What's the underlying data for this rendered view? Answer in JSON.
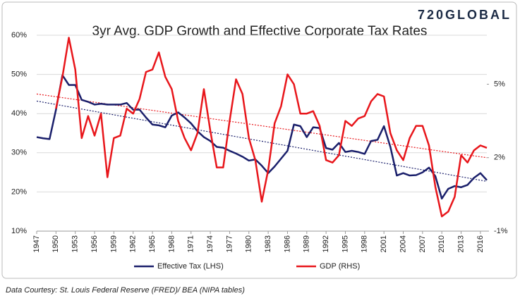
{
  "brand": "720GLOBAL",
  "source": "Data Courtesy: St. Louis Federal Reserve (FRED)/ BEA (NIPA tables)",
  "chart_data": {
    "type": "line",
    "title": "3yr Avg. GDP Growth and Effective Corporate Tax Rates",
    "x": [
      1947,
      1948,
      1949,
      1950,
      1951,
      1952,
      1953,
      1954,
      1955,
      1956,
      1957,
      1958,
      1959,
      1960,
      1961,
      1962,
      1963,
      1964,
      1965,
      1966,
      1967,
      1968,
      1969,
      1970,
      1971,
      1972,
      1973,
      1974,
      1975,
      1976,
      1977,
      1978,
      1979,
      1980,
      1981,
      1982,
      1983,
      1984,
      1985,
      1986,
      1987,
      1988,
      1989,
      1990,
      1991,
      1992,
      1993,
      1994,
      1995,
      1996,
      1997,
      1998,
      1999,
      2000,
      2001,
      2002,
      2003,
      2004,
      2005,
      2006,
      2007,
      2008,
      2009,
      2010,
      2011,
      2012,
      2013,
      2014,
      2015,
      2016,
      2017
    ],
    "xlim": [
      1947,
      2017
    ],
    "xticks": [
      1947,
      1950,
      1953,
      1956,
      1959,
      1962,
      1965,
      1968,
      1971,
      1974,
      1977,
      1980,
      1983,
      1986,
      1989,
      1992,
      1995,
      1998,
      2001,
      2004,
      2007,
      2010,
      2013,
      2016
    ],
    "ylim": [
      10,
      60
    ],
    "yticks": [
      {
        "value": 10,
        "label": "10%"
      },
      {
        "value": 20,
        "label": "20%"
      },
      {
        "value": 30,
        "label": "30%"
      },
      {
        "value": 40,
        "label": "40%"
      },
      {
        "value": 50,
        "label": "50%"
      },
      {
        "value": 60,
        "label": "60%"
      }
    ],
    "y2lim": [
      -1,
      7
    ],
    "y2ticks": [
      {
        "value": -1,
        "label": "-1%"
      },
      {
        "value": 2,
        "label": "2%"
      },
      {
        "value": 5,
        "label": "5%"
      }
    ],
    "grid": true,
    "series": [
      {
        "name": "Effective Tax (LHS)",
        "color": "#1a1f6b",
        "axis": "y",
        "values": [
          34,
          33.7,
          33.5,
          41,
          49.8,
          47.3,
          47.3,
          43.5,
          43,
          42.3,
          42.5,
          42.3,
          42.3,
          42.3,
          42.7,
          41,
          41,
          39,
          37.2,
          37,
          36.5,
          39.5,
          40.3,
          39,
          37.5,
          35.5,
          34,
          33,
          31.5,
          31.3,
          30.5,
          29.8,
          29,
          28,
          28.3,
          26.7,
          24.8,
          26.5,
          28.5,
          30.5,
          37.2,
          36.8,
          34,
          36.5,
          36.3,
          31.2,
          30.8,
          32.5,
          30.2,
          30.5,
          30.2,
          29.7,
          33,
          33.3,
          36.8,
          31.5,
          24.2,
          24.8,
          24.2,
          24.3,
          25,
          26.2,
          24,
          18.3,
          20.8,
          21.5,
          21.2,
          21.8,
          23.6,
          24.8,
          23
        ]
      },
      {
        "name": "GDP (RHS)",
        "color": "#e8161b",
        "axis": "y2",
        "values": [
          null,
          null,
          null,
          4.0,
          5.3,
          6.9,
          5.6,
          2.8,
          3.7,
          2.9,
          3.8,
          1.2,
          2.8,
          2.9,
          4.0,
          3.8,
          4.4,
          5.5,
          5.6,
          6.3,
          5.3,
          4.8,
          3.5,
          2.8,
          2.3,
          3.0,
          4.8,
          3.1,
          1.6,
          1.6,
          3.5,
          5.2,
          4.6,
          2.8,
          1.9,
          0.2,
          1.5,
          3.4,
          4.1,
          5.4,
          5.0,
          3.8,
          3.8,
          3.9,
          3.3,
          1.9,
          1.8,
          2.1,
          3.5,
          3.3,
          3.6,
          3.7,
          4.3,
          4.6,
          4.5,
          3.0,
          2.3,
          1.9,
          2.8,
          3.3,
          3.3,
          2.5,
          0.8,
          -0.4,
          -0.2,
          0.4,
          2.1,
          1.8,
          2.3,
          2.5,
          2.4
        ]
      }
    ],
    "trendlines": [
      {
        "color": "#1a1f6b",
        "axis": "y",
        "start": 43.2,
        "end": 22.7
      },
      {
        "color": "#e8161b",
        "axis": "y2",
        "start": 4.6,
        "end": 2.0
      }
    ]
  }
}
